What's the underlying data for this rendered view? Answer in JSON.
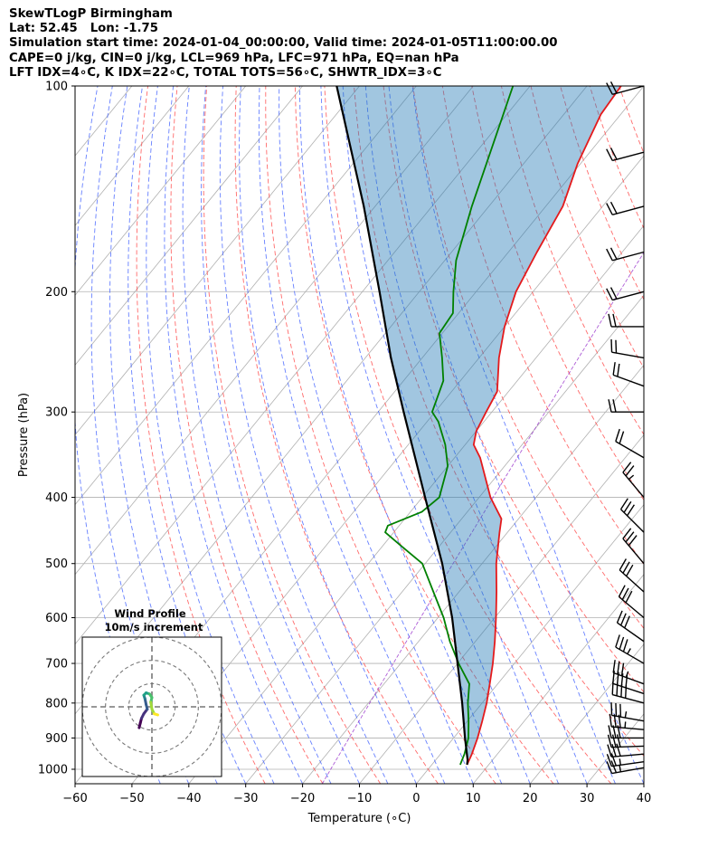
{
  "header": {
    "line1": "SkewTLogP Birmingham",
    "line2": "Lat: 52.45   Lon: -1.75",
    "line3": "Simulation start time: 2024-01-04_00:00:00, Valid time: 2024-01-05T11:00:00.00",
    "line4": "CAPE=0 j/kg, CIN=0 j/kg, LCL=969 hPa, LFC=971 hPa, EQ=nan hPa",
    "line5": "LFT IDX=4∘C, K IDX=22∘C, TOTAL TOTS=56∘C, SHWTR_IDX=3∘C"
  },
  "chart_data": [
    {
      "type": "line",
      "chart": "skew-t log-p",
      "xlabel": "Temperature (∘C)",
      "ylabel": "Pressure (hPa)",
      "xlim": [
        -60,
        40
      ],
      "ylim": [
        1050,
        100
      ],
      "yscale": "log",
      "x_ticks": [
        -60,
        -50,
        -40,
        -30,
        -20,
        -10,
        0,
        10,
        20,
        30,
        40
      ],
      "y_ticks": [
        1000,
        900,
        800,
        700,
        600,
        500,
        400,
        300,
        200,
        100
      ],
      "grid": true,
      "shaded_area": "between parcel profile and temperature (CAPE/CIN region)",
      "series": [
        {
          "role": "temperature",
          "color": "#e41a1c",
          "points": [
            {
              "p": 985,
              "t": 6.2
            },
            {
              "p": 950,
              "t": 5.5
            },
            {
              "p": 900,
              "t": 4.2
            },
            {
              "p": 850,
              "t": 2.6
            },
            {
              "p": 800,
              "t": 0.8
            },
            {
              "p": 750,
              "t": -1.4
            },
            {
              "p": 700,
              "t": -3.8
            },
            {
              "p": 650,
              "t": -6.6
            },
            {
              "p": 600,
              "t": -9.8
            },
            {
              "p": 550,
              "t": -13.4
            },
            {
              "p": 500,
              "t": -17.5
            },
            {
              "p": 450,
              "t": -21.4
            },
            {
              "p": 430,
              "t": -23.0
            },
            {
              "p": 400,
              "t": -28.0
            },
            {
              "p": 350,
              "t": -35.5
            },
            {
              "p": 335,
              "t": -38.5
            },
            {
              "p": 320,
              "t": -40.0
            },
            {
              "p": 300,
              "t": -41.0
            },
            {
              "p": 280,
              "t": -42.0
            },
            {
              "p": 250,
              "t": -46.5
            },
            {
              "p": 225,
              "t": -50.0
            },
            {
              "p": 200,
              "t": -53.0
            },
            {
              "p": 175,
              "t": -55.0
            },
            {
              "p": 150,
              "t": -57.0
            },
            {
              "p": 130,
              "t": -60.5
            },
            {
              "p": 110,
              "t": -63.5
            },
            {
              "p": 100,
              "t": -64.0
            }
          ]
        },
        {
          "role": "dewpoint",
          "color": "#008000",
          "points": [
            {
              "p": 985,
              "t": 5.0
            },
            {
              "p": 950,
              "t": 4.2
            },
            {
              "p": 900,
              "t": 2.6
            },
            {
              "p": 850,
              "t": 0.2
            },
            {
              "p": 800,
              "t": -2.5
            },
            {
              "p": 750,
              "t": -5.0
            },
            {
              "p": 700,
              "t": -9.8
            },
            {
              "p": 650,
              "t": -14.5
            },
            {
              "p": 600,
              "t": -19.0
            },
            {
              "p": 550,
              "t": -24.5
            },
            {
              "p": 500,
              "t": -30.5
            },
            {
              "p": 470,
              "t": -37.0
            },
            {
              "p": 450,
              "t": -41.5
            },
            {
              "p": 440,
              "t": -42.0
            },
            {
              "p": 420,
              "t": -38.0
            },
            {
              "p": 400,
              "t": -37.0
            },
            {
              "p": 360,
              "t": -40.0
            },
            {
              "p": 335,
              "t": -43.5
            },
            {
              "p": 310,
              "t": -48.0
            },
            {
              "p": 300,
              "t": -50.5
            },
            {
              "p": 270,
              "t": -53.0
            },
            {
              "p": 250,
              "t": -56.5
            },
            {
              "p": 230,
              "t": -60.5
            },
            {
              "p": 215,
              "t": -61.0
            },
            {
              "p": 200,
              "t": -64.0
            },
            {
              "p": 180,
              "t": -68.0
            },
            {
              "p": 150,
              "t": -73.0
            },
            {
              "p": 100,
              "t": -83.0
            }
          ]
        },
        {
          "role": "parcel",
          "color": "#000000",
          "points": [
            {
              "p": 985,
              "t": 6.2
            },
            {
              "p": 969,
              "t": 5.6
            },
            {
              "p": 900,
              "t": 2.0
            },
            {
              "p": 800,
              "t": -3.5
            },
            {
              "p": 700,
              "t": -10.0
            },
            {
              "p": 600,
              "t": -17.5
            },
            {
              "p": 500,
              "t": -27.0
            },
            {
              "p": 400,
              "t": -39.5
            },
            {
              "p": 300,
              "t": -55.5
            },
            {
              "p": 250,
              "t": -65.5
            },
            {
              "p": 200,
              "t": -77.0
            },
            {
              "p": 150,
              "t": -92.0
            },
            {
              "p": 100,
              "t": -114.0
            }
          ]
        }
      ],
      "wind_barbs": [
        {
          "p": 995,
          "from_deg": 260,
          "speed": 26
        },
        {
          "p": 975,
          "from_deg": 262,
          "speed": 28
        },
        {
          "p": 950,
          "from_deg": 265,
          "speed": 30
        },
        {
          "p": 925,
          "from_deg": 268,
          "speed": 32
        },
        {
          "p": 900,
          "from_deg": 270,
          "speed": 34
        },
        {
          "p": 875,
          "from_deg": 275,
          "speed": 36
        },
        {
          "p": 850,
          "from_deg": 280,
          "speed": 38
        },
        {
          "p": 800,
          "from_deg": 285,
          "speed": 40
        },
        {
          "p": 775,
          "from_deg": 288,
          "speed": 40
        },
        {
          "p": 750,
          "from_deg": 290,
          "speed": 38
        },
        {
          "p": 700,
          "from_deg": 300,
          "speed": 36
        },
        {
          "p": 650,
          "from_deg": 305,
          "speed": 34
        },
        {
          "p": 600,
          "from_deg": 310,
          "speed": 32
        },
        {
          "p": 550,
          "from_deg": 312,
          "speed": 32
        },
        {
          "p": 500,
          "from_deg": 320,
          "speed": 30
        },
        {
          "p": 450,
          "from_deg": 315,
          "speed": 30
        },
        {
          "p": 400,
          "from_deg": 320,
          "speed": 28
        },
        {
          "p": 350,
          "from_deg": 300,
          "speed": 24
        },
        {
          "p": 300,
          "from_deg": 270,
          "speed": 20
        },
        {
          "p": 275,
          "from_deg": 290,
          "speed": 20
        },
        {
          "p": 250,
          "from_deg": 280,
          "speed": 22
        },
        {
          "p": 225,
          "from_deg": 270,
          "speed": 22
        },
        {
          "p": 200,
          "from_deg": 255,
          "speed": 24
        },
        {
          "p": 175,
          "from_deg": 255,
          "speed": 24
        },
        {
          "p": 150,
          "from_deg": 255,
          "speed": 24
        },
        {
          "p": 125,
          "from_deg": 255,
          "speed": 24
        },
        {
          "p": 100,
          "from_deg": 255,
          "speed": 24
        }
      ]
    },
    {
      "type": "line",
      "chart": "hodograph",
      "title": "Wind Profile",
      "subtitle": "10m/s increment",
      "ring_increment": 10,
      "rings": [
        10,
        20,
        30
      ],
      "xlim": [
        -30,
        30
      ],
      "ylim": [
        -30,
        30
      ],
      "colormap": "viridis",
      "points": [
        {
          "u": -5.5,
          "v": -9.0
        },
        {
          "u": -5.0,
          "v": -7.0
        },
        {
          "u": -4.5,
          "v": -5.0
        },
        {
          "u": -3.5,
          "v": -3.0
        },
        {
          "u": -2.0,
          "v": -1.0
        },
        {
          "u": -2.5,
          "v": 1.0
        },
        {
          "u": -3.0,
          "v": 3.5
        },
        {
          "u": -3.5,
          "v": 5.0
        },
        {
          "u": -2.5,
          "v": 6.0
        },
        {
          "u": -1.0,
          "v": 5.5
        },
        {
          "u": 0.0,
          "v": 4.0
        },
        {
          "u": -0.5,
          "v": 2.0
        },
        {
          "u": 0.0,
          "v": -1.0
        },
        {
          "u": 1.0,
          "v": -3.0
        },
        {
          "u": 2.5,
          "v": -3.5
        }
      ]
    }
  ]
}
